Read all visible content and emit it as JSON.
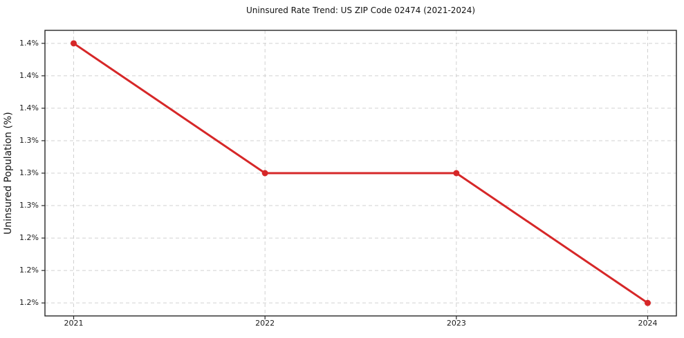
{
  "chart_data": {
    "type": "line",
    "title": "Uninsured Rate Trend: US ZIP Code 02474 (2021-2024)",
    "xlabel": "",
    "ylabel": "Uninsured Population (%)",
    "x": [
      2021,
      2022,
      2023,
      2024
    ],
    "values": [
      1.4,
      1.3,
      1.3,
      1.2
    ],
    "x_ticks": [
      2021,
      2022,
      2023,
      2024
    ],
    "x_tick_labels": [
      "2021",
      "2022",
      "2023",
      "2024"
    ],
    "y_ticks": [
      1.2,
      1.225,
      1.25,
      1.275,
      1.3,
      1.325,
      1.35,
      1.375,
      1.4
    ],
    "y_tick_labels": [
      "1.2%",
      "1.2%",
      "1.2%",
      "1.3%",
      "1.3%",
      "1.3%",
      "1.4%",
      "1.4%",
      "1.4%"
    ],
    "xlim": [
      2020.85,
      2024.15
    ],
    "ylim": [
      1.19,
      1.41
    ],
    "grid": true,
    "legend": false,
    "styles": {
      "line_color": "#d62728",
      "marker": "circle",
      "marker_radius": 4.5,
      "line_width": 3,
      "grid_color": "#cccccc",
      "grid_dash": "5,4",
      "spine_color": "#262626",
      "tick_color": "#262626",
      "text_color": "#1a1a1a",
      "background": "#ffffff"
    }
  }
}
